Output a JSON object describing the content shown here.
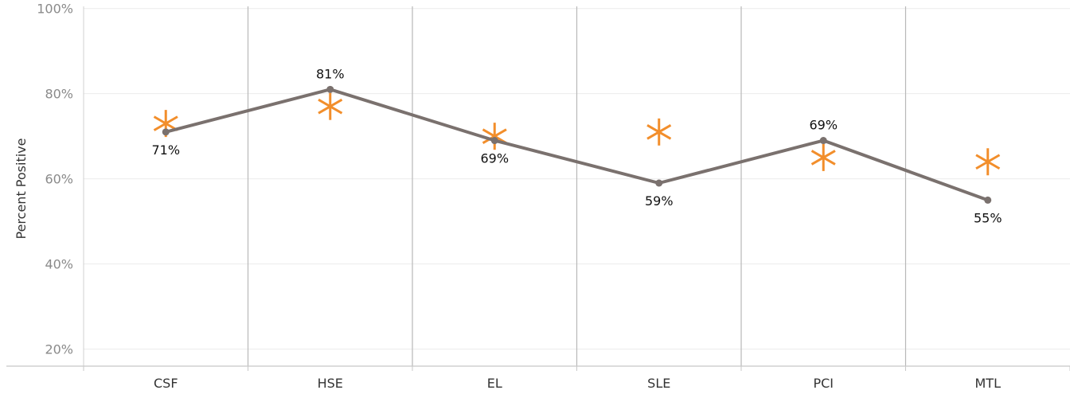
{
  "chart_data": {
    "type": "line",
    "title": "",
    "xlabel": "",
    "ylabel": "Percent Positive",
    "ylim": [
      16,
      102
    ],
    "yticks": [
      20,
      40,
      60,
      80,
      100
    ],
    "ytick_labels": [
      "20%",
      "40%",
      "60%",
      "80%",
      "100%"
    ],
    "categories": [
      "CSF",
      "HSE",
      "EL",
      "SLE",
      "PCI",
      "MTL"
    ],
    "series": [
      {
        "values": [
          71,
          81,
          69,
          59,
          69,
          55
        ],
        "labels": [
          "71%",
          "81%",
          "69%",
          "59%",
          "69%",
          "55%"
        ],
        "label_position": [
          "below",
          "above",
          "below",
          "below",
          "above",
          "below"
        ],
        "color": "#7a716e",
        "marker": "circle"
      },
      {
        "values": [
          73,
          77,
          70,
          71,
          65,
          64
        ],
        "color": "#f28e2b",
        "marker": "asterisk"
      }
    ],
    "grid": true
  }
}
